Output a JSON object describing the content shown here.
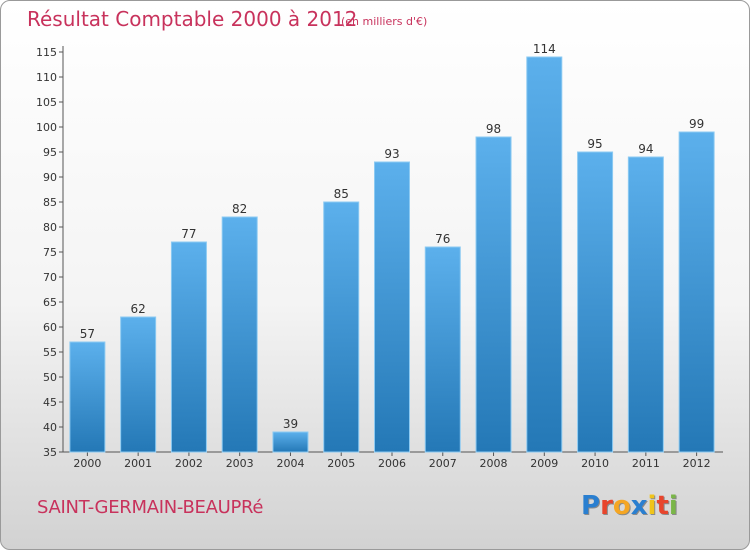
{
  "title": "Résultat Comptable 2000 à 2012",
  "subtitle": "(en milliers d'€)",
  "commune": "SAINT-GERMAIN-BEAUPRé",
  "logo": {
    "text": "Proxiti",
    "letters": [
      {
        "ch": "P",
        "color": "#2a7fd0"
      },
      {
        "ch": "r",
        "color": "#e8452c"
      },
      {
        "ch": "o",
        "color": "#f5a623"
      },
      {
        "ch": "x",
        "color": "#2a7fd0"
      },
      {
        "ch": "i",
        "color": "#f0c419"
      },
      {
        "ch": "t",
        "color": "#e8452c"
      },
      {
        "ch": "i",
        "color": "#7ab648"
      }
    ]
  },
  "colors": {
    "bar_light": "#5cb0ec",
    "bar_dark": "#2478b6",
    "title": "#c8325c"
  },
  "chart_data": {
    "type": "bar",
    "categories": [
      "2000",
      "2001",
      "2002",
      "2003",
      "2004",
      "2005",
      "2006",
      "2007",
      "2008",
      "2009",
      "2010",
      "2011",
      "2012"
    ],
    "values": [
      57,
      62,
      77,
      82,
      39,
      85,
      93,
      76,
      98,
      114,
      95,
      94,
      99
    ],
    "ylim": [
      35,
      115
    ],
    "yticks": [
      35,
      40,
      45,
      50,
      55,
      60,
      65,
      70,
      75,
      80,
      85,
      90,
      95,
      100,
      105,
      110,
      115
    ],
    "grid": false,
    "data_labels": true
  }
}
